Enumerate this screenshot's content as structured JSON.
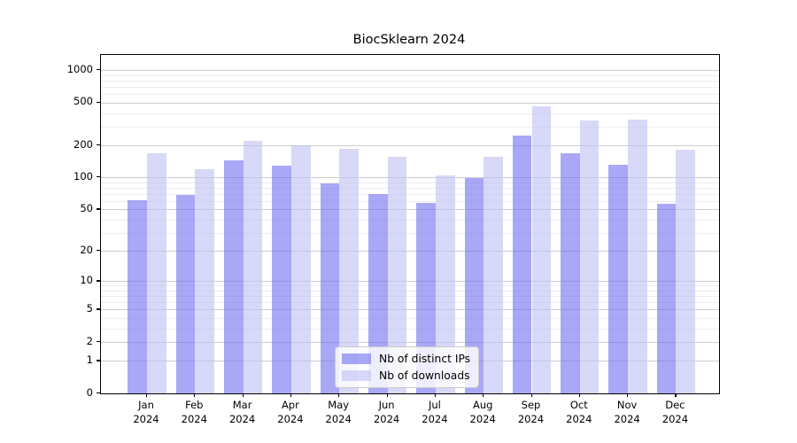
{
  "title": "BiocSklearn 2024",
  "chart_data": {
    "type": "bar",
    "title": "BiocSklearn 2024",
    "xlabel": "",
    "ylabel": "",
    "yscale": "log1p",
    "ylim": [
      0,
      1385
    ],
    "grid": true,
    "legend_position": "lower-center",
    "categories": [
      {
        "month": "Jan",
        "year": "2024"
      },
      {
        "month": "Feb",
        "year": "2024"
      },
      {
        "month": "Mar",
        "year": "2024"
      },
      {
        "month": "Apr",
        "year": "2024"
      },
      {
        "month": "May",
        "year": "2024"
      },
      {
        "month": "Jun",
        "year": "2024"
      },
      {
        "month": "Jul",
        "year": "2024"
      },
      {
        "month": "Aug",
        "year": "2024"
      },
      {
        "month": "Sep",
        "year": "2024"
      },
      {
        "month": "Oct",
        "year": "2024"
      },
      {
        "month": "Nov",
        "year": "2024"
      },
      {
        "month": "Dec",
        "year": "2024"
      }
    ],
    "series": [
      {
        "name": "Nb of distinct IPs",
        "color": "#6e6ef0",
        "opacity": 0.6,
        "apparent_color": "#a8a8f6",
        "values": [
          61,
          68,
          145,
          128,
          88,
          70,
          58,
          99,
          247,
          170,
          132,
          57
        ]
      },
      {
        "name": "Nb of downloads",
        "color": "#c0c0f5",
        "opacity": 0.62,
        "apparent_color": "#d9d9f8",
        "values": [
          170,
          120,
          222,
          199,
          184,
          155,
          104,
          155,
          460,
          340,
          345,
          181
        ]
      }
    ],
    "yticks": [
      {
        "label": "1000",
        "value": 1000
      },
      {
        "label": "500",
        "value": 500
      },
      {
        "label": "200",
        "value": 200
      },
      {
        "label": "100",
        "value": 100
      },
      {
        "label": "50",
        "value": 50
      },
      {
        "label": "20",
        "value": 20
      },
      {
        "label": "10",
        "value": 10
      },
      {
        "label": "5",
        "value": 5
      },
      {
        "label": "2",
        "value": 2
      },
      {
        "label": "1",
        "value": 1
      },
      {
        "label": "0",
        "value": 0
      }
    ],
    "yticks_minor": [
      3,
      4,
      6,
      7,
      8,
      9,
      30,
      40,
      60,
      70,
      80,
      90,
      300,
      400,
      600,
      700,
      800,
      900
    ],
    "grid_major_color": "#cdcdcd",
    "grid_minor_color": "#ededed",
    "frame_color": "#000000"
  },
  "legend": {
    "items": [
      {
        "label": "Nb of distinct IPs"
      },
      {
        "label": "Nb of downloads"
      }
    ]
  }
}
